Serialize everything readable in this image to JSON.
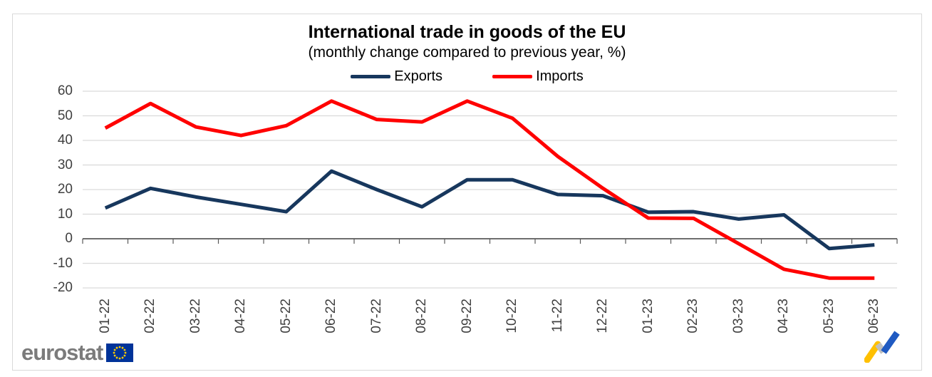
{
  "chart_data": {
    "type": "line",
    "title": "International trade in goods of the EU",
    "subtitle": "(monthly change compared to previous year, %)",
    "categories": [
      "01-22",
      "02-22",
      "03-22",
      "04-22",
      "05-22",
      "06-22",
      "07-22",
      "08-22",
      "09-22",
      "10-22",
      "11-22",
      "12-22",
      "01-23",
      "02-23",
      "03-23",
      "04-23",
      "05-23",
      "06-23"
    ],
    "series": [
      {
        "name": "Exports",
        "color": "#17375D",
        "values": [
          12.5,
          20.5,
          17,
          14,
          11,
          27.5,
          20,
          13,
          24,
          24,
          18,
          17.5,
          10.8,
          11,
          8,
          9.7,
          -4,
          -2.5
        ]
      },
      {
        "name": "Imports",
        "color": "#FF0000",
        "values": [
          45,
          55,
          45.5,
          42,
          46,
          56,
          48.5,
          47.5,
          56,
          49,
          33.5,
          20.5,
          8.4,
          8.3,
          -2,
          -12.4,
          -16,
          -16
        ]
      }
    ],
    "ylim": [
      -20,
      60
    ],
    "ytick_step": 10,
    "grid": true,
    "legend_position": "top",
    "xlabel": "",
    "ylabel": ""
  },
  "branding": {
    "logo_text": "eurostat",
    "flag_color": "#003399",
    "star_color": "#FFCC00",
    "trend_logo_yellow": "#FFC000",
    "trend_logo_blue": "#1F5AC2",
    "trend_logo_gray": "#BFBFBF"
  }
}
